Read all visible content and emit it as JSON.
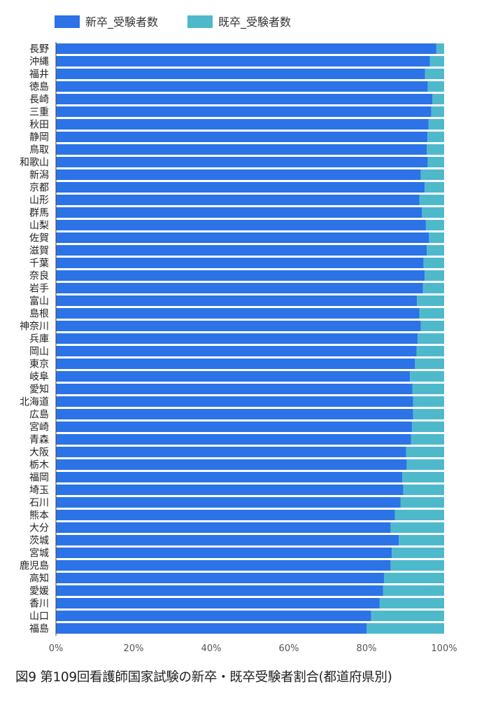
{
  "caption": "図9 第109回看護師国家試験の新卒・既卒受験者割合(都道府県別)",
  "colors": {
    "shinsotsu": "#2b73e6",
    "kisotsu": "#4fb9cc",
    "axis": "#555555"
  },
  "chart_data": {
    "type": "bar",
    "orientation": "horizontal",
    "stacked": true,
    "legend_position": "top-left",
    "xlim": [
      0,
      100
    ],
    "xticks": [
      "0%",
      "20%",
      "40%",
      "60%",
      "80%",
      "100%"
    ],
    "grid": false,
    "categories": [
      "長野",
      "沖縄",
      "福井",
      "徳島",
      "長崎",
      "三重",
      "秋田",
      "静岡",
      "鳥取",
      "和歌山",
      "新潟",
      "京都",
      "山形",
      "群馬",
      "山梨",
      "佐賀",
      "滋賀",
      "千葉",
      "奈良",
      "岩手",
      "富山",
      "島根",
      "神奈川",
      "兵庫",
      "岡山",
      "東京",
      "岐阜",
      "愛知",
      "北海道",
      "広島",
      "宮崎",
      "青森",
      "大阪",
      "栃木",
      "福岡",
      "埼玉",
      "石川",
      "熊本",
      "大分",
      "茨城",
      "宮城",
      "鹿児島",
      "高知",
      "愛媛",
      "香川",
      "山口",
      "福島"
    ],
    "series": [
      {
        "name": "新卒_受験者数",
        "values": [
          98.0,
          96.3,
          95.1,
          95.8,
          97.0,
          96.7,
          96.0,
          95.7,
          95.5,
          95.8,
          94.0,
          95.0,
          93.6,
          94.3,
          95.3,
          96.1,
          95.5,
          94.7,
          95.0,
          94.5,
          93.0,
          93.6,
          94.0,
          93.2,
          92.9,
          92.5,
          91.2,
          91.8,
          92.0,
          92.0,
          91.7,
          91.5,
          90.2,
          90.4,
          89.2,
          89.5,
          88.8,
          87.3,
          86.2,
          88.3,
          86.5,
          86.2,
          84.5,
          84.3,
          83.4,
          81.2,
          80.0
        ]
      },
      {
        "name": "既卒_受験者数",
        "values": [
          2.0,
          3.7,
          4.9,
          4.2,
          3.0,
          3.3,
          4.0,
          4.3,
          4.5,
          4.2,
          6.0,
          5.0,
          6.4,
          5.7,
          4.7,
          3.9,
          4.5,
          5.3,
          5.0,
          5.5,
          7.0,
          6.4,
          6.0,
          6.8,
          7.1,
          7.5,
          8.8,
          8.2,
          8.0,
          8.0,
          8.3,
          8.5,
          9.8,
          9.6,
          10.8,
          10.5,
          11.2,
          12.7,
          13.8,
          11.7,
          13.5,
          13.8,
          15.5,
          15.7,
          16.6,
          18.8,
          20.0
        ]
      }
    ]
  }
}
